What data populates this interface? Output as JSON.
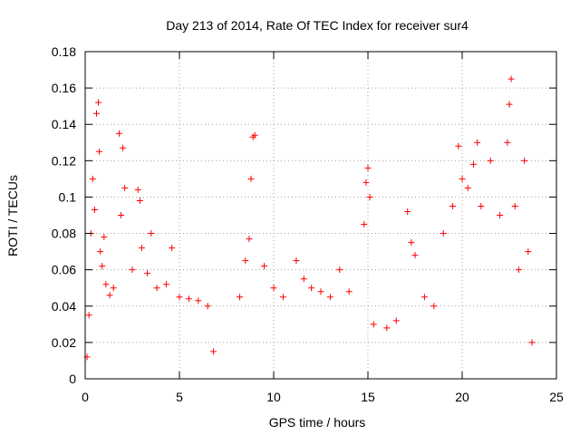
{
  "chart_data": {
    "type": "scatter",
    "title": "Day 213 of 2014, Rate Of TEC Index for receiver sur4",
    "xlabel": "GPS time / hours",
    "ylabel": "ROTI / TECUs",
    "xlim": [
      0,
      25
    ],
    "ylim": [
      0,
      0.18
    ],
    "xticks": [
      0,
      5,
      10,
      15,
      20,
      25
    ],
    "xtick_labels": [
      "0",
      "5",
      "10",
      "15",
      "20",
      "25"
    ],
    "yticks": [
      0,
      0.02,
      0.04,
      0.06,
      0.08,
      0.1,
      0.12,
      0.14,
      0.16,
      0.18
    ],
    "ytick_labels": [
      "0",
      "0.02",
      "0.04",
      "0.06",
      "0.08",
      "0.1",
      "0.12",
      "0.14",
      "0.16",
      "0.18"
    ],
    "grid": true,
    "marker": "+",
    "marker_color": "#ff0000",
    "series": [
      {
        "points": [
          [
            0.1,
            0.012
          ],
          [
            0.2,
            0.035
          ],
          [
            0.3,
            0.08
          ],
          [
            0.4,
            0.11
          ],
          [
            0.5,
            0.093
          ],
          [
            0.6,
            0.146
          ],
          [
            0.7,
            0.152
          ],
          [
            0.75,
            0.125
          ],
          [
            0.8,
            0.07
          ],
          [
            0.9,
            0.062
          ],
          [
            1.0,
            0.078
          ],
          [
            1.1,
            0.052
          ],
          [
            1.3,
            0.046
          ],
          [
            1.5,
            0.05
          ],
          [
            1.8,
            0.135
          ],
          [
            1.9,
            0.09
          ],
          [
            2.0,
            0.127
          ],
          [
            2.1,
            0.105
          ],
          [
            2.5,
            0.06
          ],
          [
            2.8,
            0.104
          ],
          [
            2.9,
            0.098
          ],
          [
            3.0,
            0.072
          ],
          [
            3.3,
            0.058
          ],
          [
            3.5,
            0.08
          ],
          [
            3.8,
            0.05
          ],
          [
            4.3,
            0.052
          ],
          [
            4.6,
            0.072
          ],
          [
            5.0,
            0.045
          ],
          [
            5.5,
            0.044
          ],
          [
            6.0,
            0.043
          ],
          [
            6.5,
            0.04
          ],
          [
            6.8,
            0.015
          ],
          [
            8.2,
            0.045
          ],
          [
            8.5,
            0.065
          ],
          [
            8.7,
            0.077
          ],
          [
            8.8,
            0.11
          ],
          [
            8.9,
            0.133
          ],
          [
            9.0,
            0.134
          ],
          [
            9.5,
            0.062
          ],
          [
            10.0,
            0.05
          ],
          [
            10.5,
            0.045
          ],
          [
            11.2,
            0.065
          ],
          [
            11.6,
            0.055
          ],
          [
            12.0,
            0.05
          ],
          [
            12.5,
            0.048
          ],
          [
            13.0,
            0.045
          ],
          [
            13.5,
            0.06
          ],
          [
            14.0,
            0.048
          ],
          [
            14.8,
            0.085
          ],
          [
            14.9,
            0.108
          ],
          [
            15.0,
            0.116
          ],
          [
            15.1,
            0.1
          ],
          [
            15.3,
            0.03
          ],
          [
            16.0,
            0.028
          ],
          [
            16.5,
            0.032
          ],
          [
            17.1,
            0.092
          ],
          [
            17.3,
            0.075
          ],
          [
            17.5,
            0.068
          ],
          [
            18.0,
            0.045
          ],
          [
            18.5,
            0.04
          ],
          [
            19.0,
            0.08
          ],
          [
            19.5,
            0.095
          ],
          [
            19.8,
            0.128
          ],
          [
            20.0,
            0.11
          ],
          [
            20.3,
            0.105
          ],
          [
            20.6,
            0.118
          ],
          [
            20.8,
            0.13
          ],
          [
            21.0,
            0.095
          ],
          [
            21.5,
            0.12
          ],
          [
            22.0,
            0.09
          ],
          [
            22.4,
            0.13
          ],
          [
            22.5,
            0.151
          ],
          [
            22.6,
            0.165
          ],
          [
            22.8,
            0.095
          ],
          [
            23.0,
            0.06
          ],
          [
            23.3,
            0.12
          ],
          [
            23.5,
            0.07
          ],
          [
            23.7,
            0.02
          ]
        ]
      }
    ]
  }
}
